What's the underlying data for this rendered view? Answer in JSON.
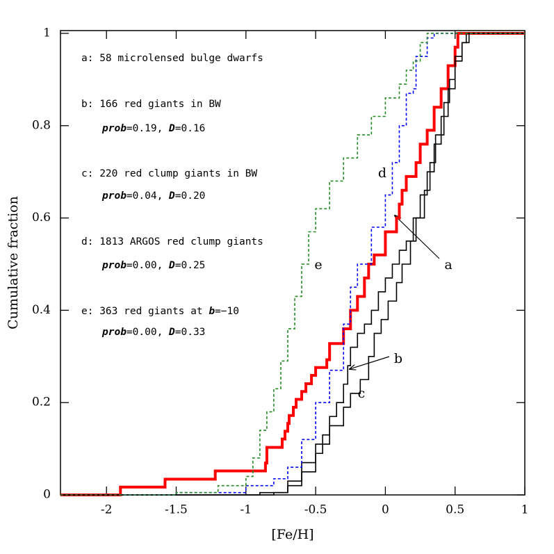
{
  "chart_data": {
    "type": "line",
    "step": "post",
    "xlabel": "[Fe/H]",
    "ylabel": "Cumulative fraction",
    "xlim": [
      -2.33,
      1
    ],
    "ylim": [
      0,
      1.006
    ],
    "xticks": [
      -2,
      -1.5,
      -1,
      -0.5,
      0,
      0.5,
      1
    ],
    "yticks": [
      0,
      0.2,
      0.4,
      0.6,
      0.8,
      1
    ],
    "series": [
      {
        "name": "a",
        "color": "#ff0000",
        "width": 4,
        "dash": "solid",
        "x": [
          -2.33,
          -1.9,
          -1.58,
          -1.22,
          -0.86,
          -0.85,
          -0.74,
          -0.72,
          -0.7,
          -0.69,
          -0.66,
          -0.64,
          -0.6,
          -0.57,
          -0.53,
          -0.5,
          -0.42,
          -0.4,
          -0.3,
          -0.25,
          -0.2,
          -0.15,
          -0.12,
          -0.08,
          0,
          0.08,
          0.1,
          0.12,
          0.15,
          0.22,
          0.25,
          0.3,
          0.35,
          0.4,
          0.45,
          0.5,
          0.52,
          1
        ],
        "y": [
          0,
          0.017,
          0.034,
          0.052,
          0.069,
          0.103,
          0.121,
          0.138,
          0.155,
          0.172,
          0.19,
          0.207,
          0.224,
          0.241,
          0.259,
          0.276,
          0.293,
          0.328,
          0.36,
          0.4,
          0.43,
          0.47,
          0.5,
          0.52,
          0.57,
          0.6,
          0.63,
          0.66,
          0.69,
          0.72,
          0.76,
          0.79,
          0.84,
          0.88,
          0.93,
          0.97,
          1,
          1
        ]
      },
      {
        "name": "b",
        "color": "#000000",
        "width": 1.6,
        "dash": "solid",
        "x": [
          -2.33,
          -0.9,
          -0.7,
          -0.6,
          -0.5,
          -0.45,
          -0.4,
          -0.35,
          -0.3,
          -0.27,
          -0.25,
          -0.2,
          -0.15,
          -0.1,
          -0.05,
          0,
          0.05,
          0.1,
          0.15,
          0.2,
          0.25,
          0.3,
          0.35,
          0.4,
          0.45,
          0.5,
          0.55,
          0.6,
          1
        ],
        "y": [
          0,
          0.005,
          0.02,
          0.05,
          0.09,
          0.13,
          0.17,
          0.2,
          0.24,
          0.28,
          0.32,
          0.35,
          0.37,
          0.4,
          0.44,
          0.47,
          0.5,
          0.53,
          0.55,
          0.6,
          0.65,
          0.7,
          0.76,
          0.82,
          0.88,
          0.94,
          0.98,
          1,
          1
        ]
      },
      {
        "name": "c",
        "color": "#000000",
        "width": 1.6,
        "dash": "solid",
        "x": [
          -2.33,
          -0.8,
          -0.7,
          -0.6,
          -0.5,
          -0.4,
          -0.3,
          -0.25,
          -0.18,
          -0.12,
          -0.08,
          -0.03,
          0.02,
          0.08,
          0.12,
          0.18,
          0.22,
          0.28,
          0.32,
          0.36,
          0.42,
          0.46,
          0.5,
          0.55,
          0.58,
          1
        ],
        "y": [
          0,
          0.005,
          0.03,
          0.07,
          0.11,
          0.15,
          0.19,
          0.22,
          0.25,
          0.3,
          0.35,
          0.38,
          0.42,
          0.46,
          0.5,
          0.55,
          0.6,
          0.66,
          0.72,
          0.78,
          0.85,
          0.9,
          0.95,
          0.98,
          1,
          1
        ]
      },
      {
        "name": "d",
        "color": "#0000ff",
        "width": 1.6,
        "dash": "dashed",
        "x": [
          -2.33,
          -1.5,
          -1.0,
          -0.8,
          -0.7,
          -0.6,
          -0.5,
          -0.4,
          -0.3,
          -0.25,
          -0.2,
          -0.1,
          0,
          0.05,
          0.1,
          0.15,
          0.2,
          0.22,
          0.3,
          0.35,
          1
        ],
        "y": [
          0,
          0.005,
          0.02,
          0.035,
          0.06,
          0.12,
          0.2,
          0.27,
          0.37,
          0.45,
          0.5,
          0.58,
          0.65,
          0.72,
          0.8,
          0.87,
          0.88,
          0.95,
          0.99,
          1,
          1
        ]
      },
      {
        "name": "e",
        "color": "#228b22",
        "width": 1.6,
        "dash": "dashed",
        "x": [
          -2.33,
          -1.5,
          -1.2,
          -1.0,
          -0.95,
          -0.9,
          -0.85,
          -0.8,
          -0.75,
          -0.7,
          -0.65,
          -0.6,
          -0.55,
          -0.5,
          -0.4,
          -0.3,
          -0.2,
          -0.1,
          0,
          0.1,
          0.15,
          0.2,
          0.25,
          0.3,
          1
        ],
        "y": [
          0,
          0.005,
          0.02,
          0.04,
          0.08,
          0.14,
          0.18,
          0.23,
          0.29,
          0.36,
          0.43,
          0.5,
          0.57,
          0.62,
          0.68,
          0.73,
          0.78,
          0.82,
          0.86,
          0.89,
          0.92,
          0.94,
          0.98,
          1,
          1
        ]
      }
    ],
    "notes": [
      [
        {
          "text": "a: 58 microlensed bulge dwarfs"
        }
      ],
      [
        {
          "text": "b: 166 red giants in BW"
        }
      ],
      [
        {
          "text": "prob",
          "italic": true
        },
        {
          "text": "=0.19, "
        },
        {
          "text": "D",
          "italic": true
        },
        {
          "text": "=0.16"
        }
      ],
      [
        {
          "text": "c: 220 red clump giants in BW"
        }
      ],
      [
        {
          "text": "prob",
          "italic": true
        },
        {
          "text": "=0.04, "
        },
        {
          "text": "D",
          "italic": true
        },
        {
          "text": "=0.20"
        }
      ],
      [
        {
          "text": "d: 1813 ARGOS red clump giants"
        }
      ],
      [
        {
          "text": "prob",
          "italic": true
        },
        {
          "text": "=0.00, "
        },
        {
          "text": "D",
          "italic": true
        },
        {
          "text": "=0.25"
        }
      ],
      [
        {
          "text": "e: 363 red giants at "
        },
        {
          "text": "b",
          "italic": true
        },
        {
          "text": "=−10"
        }
      ],
      [
        {
          "text": "prob",
          "italic": true
        },
        {
          "text": "=0.00, "
        },
        {
          "text": "D",
          "italic": true
        },
        {
          "text": "=0.33"
        }
      ]
    ]
  }
}
